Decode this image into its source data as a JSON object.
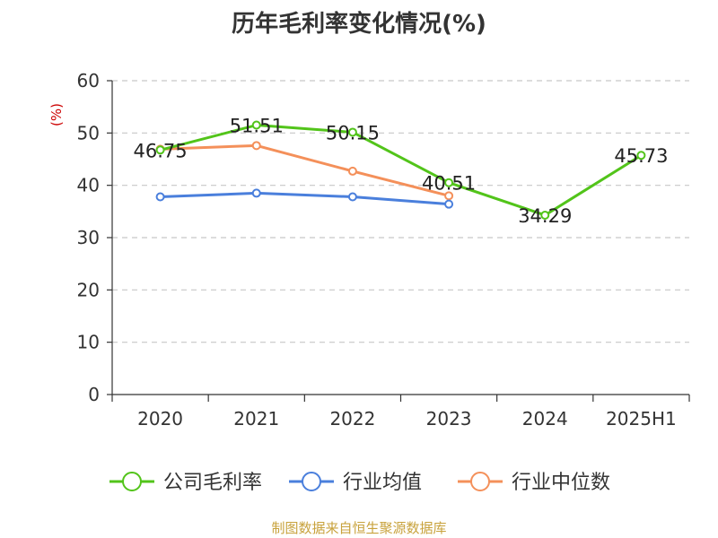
{
  "page": {
    "source_note": "制图数据来自恒生聚源数据库"
  },
  "chart_data": {
    "type": "line",
    "title": "历年毛利率变化情况(%)",
    "ylabel": "(%)",
    "categories": [
      "2020",
      "2021",
      "2022",
      "2023",
      "2024",
      "2025H1"
    ],
    "ylim": [
      0,
      60
    ],
    "yticks": [
      0,
      10,
      20,
      30,
      40,
      50,
      60
    ],
    "grid": "horizontal-dashed",
    "legend_position": "bottom",
    "series": [
      {
        "name": "公司毛利率",
        "color": "#52c41a",
        "values": [
          46.75,
          51.51,
          50.15,
          40.51,
          34.29,
          45.73
        ],
        "labels": [
          "46.75",
          "51.51",
          "50.15",
          "40.51",
          "34.29",
          "45.73"
        ]
      },
      {
        "name": "行业均值",
        "color": "#4a7fdc",
        "values": [
          37.8,
          38.5,
          37.8,
          36.4,
          null,
          null
        ]
      },
      {
        "name": "行业中位数",
        "color": "#f4905a",
        "values": [
          46.9,
          47.6,
          42.7,
          38.0,
          null,
          null
        ]
      }
    ]
  }
}
